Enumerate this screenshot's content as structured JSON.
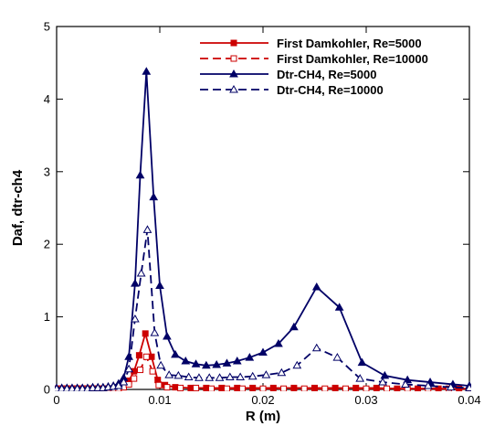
{
  "chart_data": {
    "type": "line",
    "title": "",
    "xlabel": "R (m)",
    "ylabel": "Daf, dtr-ch4",
    "xlim": [
      0,
      0.04
    ],
    "ylim": [
      0,
      5
    ],
    "xticks": [
      0,
      0.01,
      0.02,
      0.03,
      0.04
    ],
    "xtick_labels": [
      "0",
      "0.01",
      "0.02",
      "0.03",
      "0.04"
    ],
    "yticks": [
      0,
      1,
      2,
      3,
      4,
      5
    ],
    "ytick_labels": [
      "0",
      "1",
      "2",
      "3",
      "4",
      "5"
    ],
    "grid": false,
    "legend_position": "top-right",
    "series": [
      {
        "name": "First Damkohler, Re=5000",
        "color": "#cc0000",
        "dash": "solid",
        "marker": "square-filled",
        "x": [
          0,
          0.0005,
          0.001,
          0.0015,
          0.002,
          0.0025,
          0.003,
          0.0035,
          0.004,
          0.0045,
          0.005,
          0.0055,
          0.006,
          0.0065,
          0.007,
          0.0075,
          0.008,
          0.0086,
          0.0092,
          0.0098,
          0.0105,
          0.0115,
          0.013,
          0.0145,
          0.016,
          0.0175,
          0.019,
          0.021,
          0.023,
          0.025,
          0.027,
          0.029,
          0.031,
          0.033,
          0.035,
          0.037,
          0.039,
          0.04
        ],
        "y": [
          0.01,
          0.01,
          0.01,
          0.01,
          0.01,
          0.01,
          0.01,
          0.01,
          0.01,
          0.01,
          0.01,
          0.01,
          0.02,
          0.05,
          0.12,
          0.25,
          0.47,
          0.77,
          0.45,
          0.13,
          0.06,
          0.03,
          0.02,
          0.02,
          0.02,
          0.02,
          0.02,
          0.02,
          0.02,
          0.02,
          0.02,
          0.02,
          0.02,
          0.01,
          0.01,
          0.01,
          0.01,
          0.01
        ]
      },
      {
        "name": "First Damkohler, Re=10000",
        "color": "#cc0000",
        "dash": "dashed",
        "marker": "square-open",
        "x": [
          0,
          0.0005,
          0.001,
          0.0015,
          0.002,
          0.0025,
          0.003,
          0.0035,
          0.004,
          0.0045,
          0.005,
          0.0055,
          0.006,
          0.0065,
          0.007,
          0.0075,
          0.0081,
          0.0087,
          0.0093,
          0.0099,
          0.0107,
          0.012,
          0.0135,
          0.015,
          0.0165,
          0.018,
          0.02,
          0.022,
          0.024,
          0.026,
          0.028,
          0.03,
          0.032,
          0.034,
          0.036,
          0.038,
          0.04
        ],
        "y": [
          0.01,
          0.01,
          0.01,
          0.01,
          0.01,
          0.01,
          0.01,
          0.01,
          0.01,
          0.01,
          0.01,
          0.01,
          0.01,
          0.03,
          0.07,
          0.15,
          0.27,
          0.45,
          0.25,
          0.06,
          0.03,
          0.02,
          0.02,
          0.01,
          0.01,
          0.01,
          0.01,
          0.01,
          0.01,
          0.01,
          0.01,
          0.01,
          0.01,
          0.01,
          0.01,
          0.01,
          0.01
        ]
      },
      {
        "name": "Dtr-CH4, Re=5000",
        "color": "#000066",
        "dash": "solid",
        "marker": "triangle-filled",
        "x": [
          0,
          0.0005,
          0.001,
          0.0015,
          0.002,
          0.0025,
          0.003,
          0.0035,
          0.004,
          0.0045,
          0.005,
          0.0055,
          0.006,
          0.0065,
          0.007,
          0.0076,
          0.0081,
          0.0087,
          0.0094,
          0.01,
          0.0107,
          0.0115,
          0.0125,
          0.0135,
          0.0145,
          0.0155,
          0.0165,
          0.0175,
          0.0187,
          0.02,
          0.0215,
          0.023,
          0.0252,
          0.0274,
          0.0296,
          0.0318,
          0.034,
          0.0362,
          0.0384,
          0.04
        ],
        "y": [
          0.02,
          0.02,
          0.02,
          0.02,
          0.02,
          0.02,
          0.02,
          0.03,
          0.03,
          0.03,
          0.04,
          0.05,
          0.08,
          0.16,
          0.45,
          1.46,
          2.95,
          4.38,
          2.65,
          1.43,
          0.73,
          0.48,
          0.39,
          0.35,
          0.33,
          0.34,
          0.36,
          0.39,
          0.44,
          0.51,
          0.63,
          0.86,
          1.41,
          1.13,
          0.37,
          0.19,
          0.13,
          0.1,
          0.07,
          0.05
        ]
      },
      {
        "name": "Dtr-CH4, Re=10000",
        "color": "#000066",
        "dash": "dashed",
        "marker": "triangle-open",
        "x": [
          0,
          0.0005,
          0.001,
          0.0015,
          0.002,
          0.0025,
          0.003,
          0.0035,
          0.004,
          0.0045,
          0.005,
          0.0055,
          0.006,
          0.0065,
          0.007,
          0.0076,
          0.0082,
          0.0088,
          0.0095,
          0.0101,
          0.0109,
          0.0118,
          0.0128,
          0.0138,
          0.0148,
          0.0158,
          0.0168,
          0.0178,
          0.019,
          0.0203,
          0.0218,
          0.0233,
          0.0252,
          0.0272,
          0.0294,
          0.0316,
          0.0338,
          0.036,
          0.0382,
          0.04
        ],
        "y": [
          0.01,
          0.01,
          0.01,
          0.01,
          0.01,
          0.01,
          0.01,
          0.02,
          0.02,
          0.02,
          0.03,
          0.04,
          0.05,
          0.1,
          0.28,
          0.97,
          1.6,
          2.2,
          0.78,
          0.33,
          0.2,
          0.19,
          0.17,
          0.16,
          0.16,
          0.16,
          0.17,
          0.17,
          0.18,
          0.2,
          0.23,
          0.33,
          0.57,
          0.44,
          0.15,
          0.1,
          0.07,
          0.05,
          0.03,
          0.02
        ]
      }
    ]
  }
}
